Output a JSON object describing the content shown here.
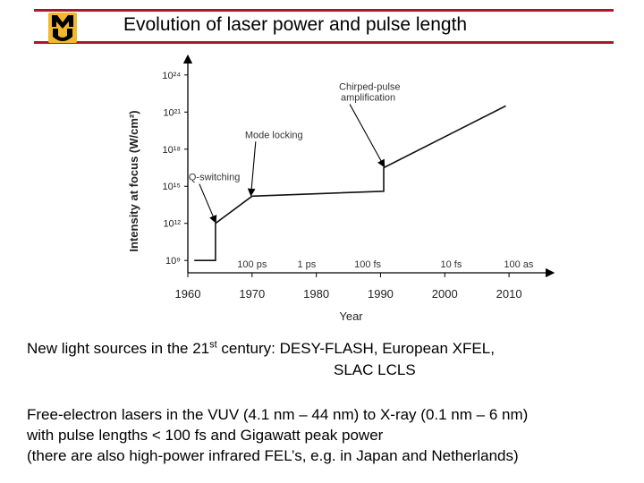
{
  "slide": {
    "title": "Evolution of laser power and pulse length",
    "logo": {
      "icon": "mizzou-mu-logo",
      "text": "MU",
      "color": "#b0142c",
      "accent": "#f1b82d"
    },
    "accent_color": "#b0142c"
  },
  "chart_data": {
    "type": "line",
    "xlabel": "Year",
    "ylabel": "Intensity at focus (W/cm²)",
    "x_ticks": [
      "1960",
      "1970",
      "1980",
      "1990",
      "2000",
      "2010"
    ],
    "y_ticks": [
      "10⁹",
      "10¹²",
      "10¹⁵",
      "10¹⁸",
      "10²¹",
      "10²⁴"
    ],
    "xlim": [
      1960,
      2015
    ],
    "ylim_log10": [
      8,
      25
    ],
    "series": [
      {
        "values": [
          [
            1961,
            9
          ],
          [
            1964.3,
            9
          ],
          [
            1964.3,
            12
          ],
          [
            1970,
            14.2
          ],
          [
            1990.5,
            14.6
          ],
          [
            1990.5,
            16.5
          ],
          [
            2009.5,
            21.5
          ]
        ]
      }
    ],
    "annotations": [
      {
        "text": "Q-switching",
        "x": 1964.3,
        "y": 12
      },
      {
        "text": "Mode locking",
        "x": 1970,
        "y": 14.2
      },
      {
        "text": "Chirped-pulse amplification",
        "x": 1990.5,
        "y": 16.5
      }
    ],
    "pulse_labels": [
      {
        "text": "100 ps",
        "x": 1970
      },
      {
        "text": "1 ps",
        "x": 1978.5
      },
      {
        "text": "100 fs",
        "x": 1988
      },
      {
        "text": "10 fs",
        "x": 2001
      },
      {
        "text": "100 as",
        "x": 2011.5
      }
    ],
    "grid": false
  },
  "body": {
    "line1_pre": "New light sources in the 21",
    "line1_sup": "st",
    "line1_post": " century:  DESY-FLASH, European XFEL,",
    "line2": "SLAC LCLS",
    "para2": [
      "Free-electron lasers in the VUV (4.1 nm – 44 nm) to X-ray (0.1 nm – 6 nm)",
      "with pulse lengths < 100 fs and Gigawatt peak power",
      "(there are also high-power infrared FEL’s, e.g. in Japan and Netherlands)"
    ]
  }
}
